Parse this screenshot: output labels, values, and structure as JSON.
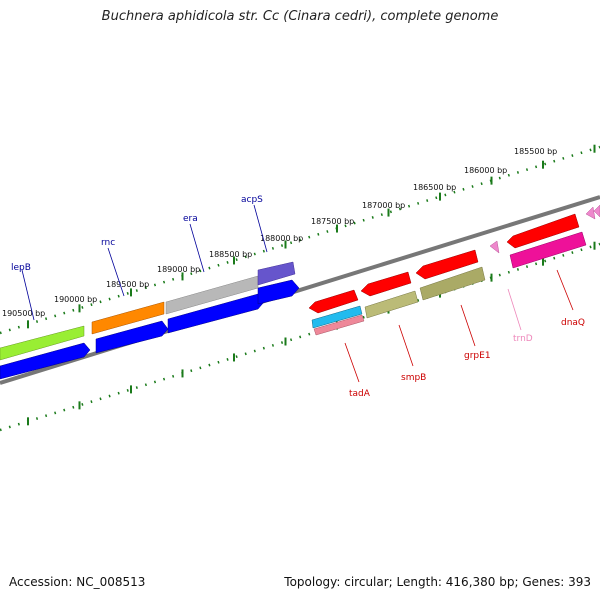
{
  "title": "Buchnera aphidicola str. Cc (Cinara cedri), complete genome",
  "accession": "Accession: NC_008513",
  "summary": "Topology: circular; Length: 416,380 bp; Genes: 393",
  "scale": {
    "tick_labels": [
      "185500 bp",
      "186000 bp",
      "186500 bp",
      "187000 bp",
      "187500 bp",
      "188000 bp",
      "188500 bp",
      "189000 bp",
      "189500 bp",
      "190000 bp",
      "190500 bp"
    ]
  },
  "genes": {
    "top": [
      {
        "label": "lepB",
        "color": "#000099"
      },
      {
        "label": "rnc",
        "color": "#000099"
      },
      {
        "label": "era",
        "color": "#000099"
      },
      {
        "label": "acpS",
        "color": "#000099"
      }
    ],
    "bottom": [
      {
        "label": "tadA",
        "color": "#cc0000"
      },
      {
        "label": "smpB",
        "color": "#cc0000"
      },
      {
        "label": "grpE1",
        "color": "#cc0000"
      },
      {
        "label": "trnD",
        "color": "#ee88bb"
      },
      {
        "label": "dnaQ",
        "color": "#cc0000"
      }
    ]
  },
  "colors": {
    "strand_plus": "#0000ff",
    "strand_minus": "#ff0000",
    "backbone": "#777777",
    "tick": "#1a7a1a"
  }
}
